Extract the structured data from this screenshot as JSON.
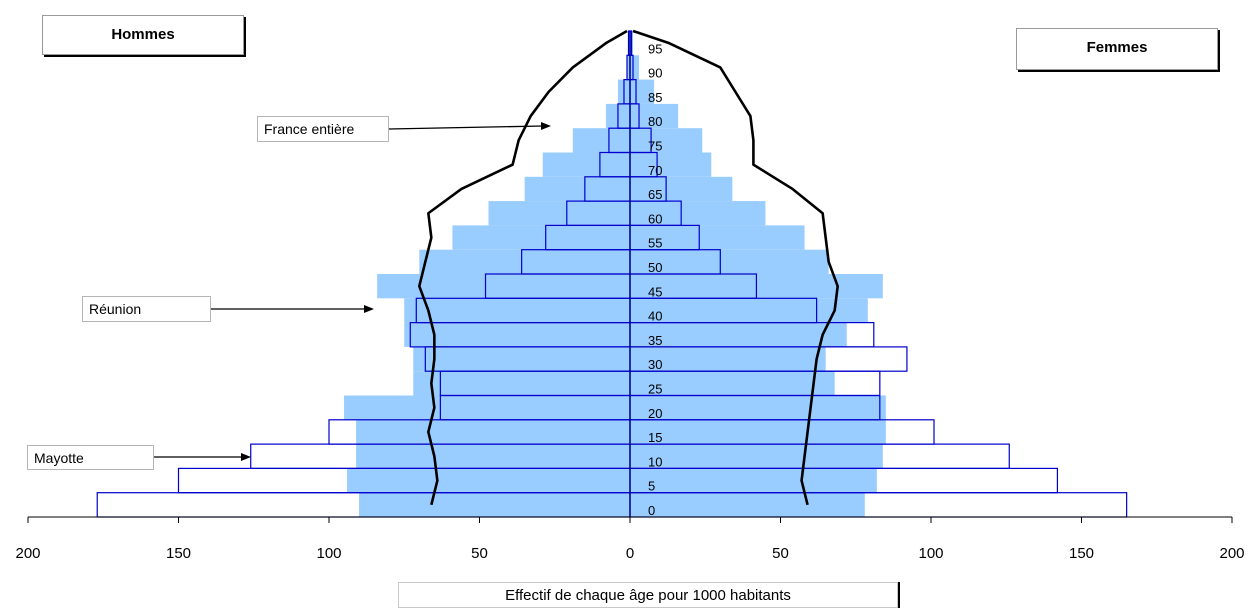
{
  "labels": {
    "men": "Hommes",
    "women": "Femmes",
    "france": "France entière",
    "reunion": "Réunion",
    "mayotte": "Mayotte",
    "xlabel": "Effectif de chaque âge pour 1000 habitants"
  },
  "colors": {
    "reunion_fill": "#99ccff",
    "mayotte_stroke": "#0000cc",
    "france_line": "#000000"
  },
  "chart_data": {
    "type": "bar",
    "orientation": "horizontal-pyramid",
    "xlabel": "Effectif de chaque âge pour 1000 habitants",
    "xlim": [
      -200,
      200
    ],
    "xticks": [
      -200,
      -150,
      -100,
      -50,
      0,
      50,
      100,
      150,
      200
    ],
    "xtick_labels": [
      "200",
      "150",
      "100",
      "50",
      "0",
      "50",
      "100",
      "150",
      "200"
    ],
    "age_labels": [
      "0",
      "5",
      "10",
      "15",
      "20",
      "25",
      "30",
      "35",
      "40",
      "45",
      "50",
      "55",
      "60",
      "65",
      "70",
      "75",
      "80",
      "85",
      "90",
      "95"
    ],
    "age_groups": [
      "0-4",
      "5-9",
      "10-14",
      "15-19",
      "20-24",
      "25-29",
      "30-34",
      "35-39",
      "40-44",
      "45-49",
      "50-54",
      "55-59",
      "60-64",
      "65-69",
      "70-74",
      "75-79",
      "80-84",
      "85-89",
      "90-94",
      "95+"
    ],
    "series": [
      {
        "name": "Réunion",
        "style": "filled",
        "men": [
          90,
          94,
          91,
          91,
          95,
          72,
          72,
          75,
          75,
          84,
          70,
          59,
          47,
          35,
          29,
          19,
          8,
          4,
          1,
          0.3
        ],
        "women": [
          78,
          82,
          84,
          85,
          85,
          68,
          65,
          72,
          79,
          84,
          66,
          58,
          45,
          34,
          27,
          24,
          16,
          8,
          3,
          1
        ]
      },
      {
        "name": "Mayotte",
        "style": "outline",
        "men": [
          177,
          150,
          126,
          100,
          63,
          63,
          68,
          73,
          71,
          48,
          36,
          28,
          21,
          15,
          10,
          7,
          4,
          2,
          1,
          0.5
        ],
        "women": [
          165,
          142,
          126,
          101,
          83,
          83,
          92,
          81,
          62,
          42,
          30,
          23,
          17,
          12,
          9,
          7,
          3,
          2,
          1,
          0.5
        ]
      },
      {
        "name": "France entière",
        "style": "line",
        "men": [
          66,
          64,
          65,
          67,
          65,
          66,
          65,
          65,
          67,
          70,
          68,
          66,
          67,
          56,
          39,
          37,
          33,
          27,
          19,
          8,
          1
        ],
        "women": [
          59,
          57,
          58,
          59,
          60,
          61,
          62,
          64,
          68,
          69,
          66,
          65,
          64,
          54,
          41,
          41,
          40,
          35,
          30,
          13,
          1
        ],
        "line_ages": [
          2.5,
          7.5,
          12.5,
          17.5,
          22.5,
          27.5,
          32.5,
          37.5,
          42.5,
          47.5,
          52.5,
          57.5,
          62.5,
          67.5,
          72.5,
          77.5,
          82.5,
          87.5,
          92.5,
          97.5,
          100
        ]
      }
    ]
  }
}
